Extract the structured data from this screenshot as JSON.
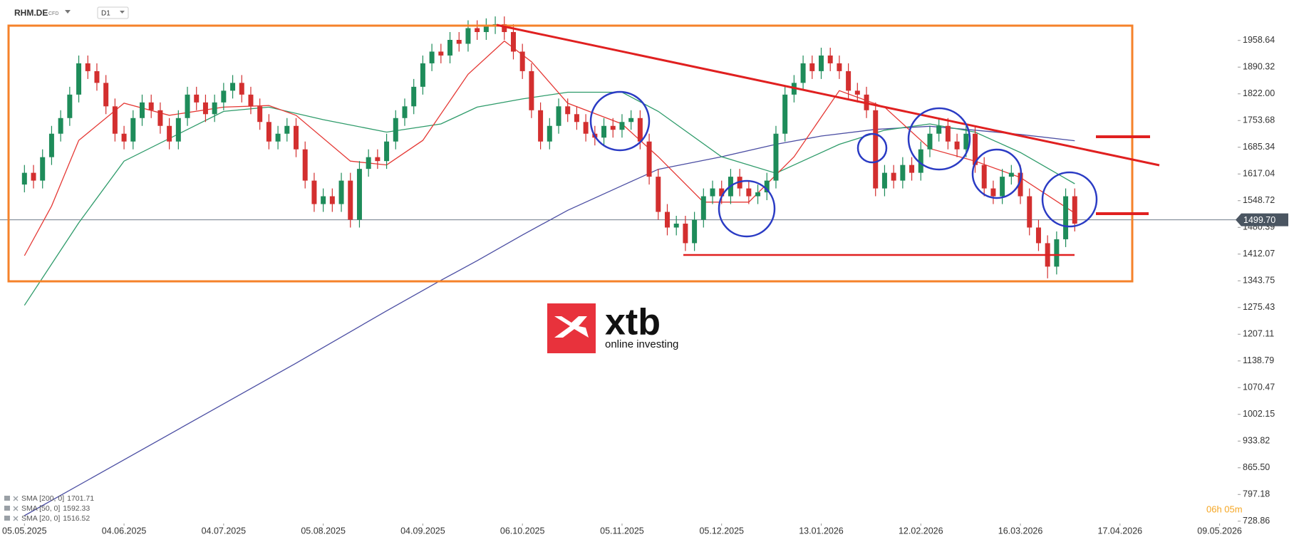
{
  "chart_data": {
    "type": "candlestick",
    "symbol": "RHM.DE",
    "instrument_type": "CFD",
    "timeframe": "D1",
    "up_color": "#1e8c5a",
    "down_color": "#d32f2f",
    "open": [
      1590,
      1620,
      1600,
      1660,
      1720,
      1760,
      1820,
      1900,
      1880,
      1850,
      1790,
      1720,
      1700,
      1760,
      1800,
      1780,
      1740,
      1700,
      1760,
      1820,
      1800,
      1770,
      1800,
      1830,
      1850,
      1820,
      1790,
      1750,
      1700,
      1720,
      1740,
      1680,
      1600,
      1540,
      1560,
      1540,
      1600,
      1500,
      1630,
      1660,
      1650,
      1700,
      1760,
      1790,
      1840,
      1900,
      1930,
      1920,
      1960,
      1950,
      1990,
      1980,
      1995,
      2000,
      1980,
      1930,
      1880,
      1780,
      1700,
      1740,
      1790,
      1770,
      1750,
      1720,
      1710,
      1740,
      1730,
      1750,
      1760,
      1700,
      1610,
      1520,
      1480,
      1490,
      1440,
      1500,
      1560,
      1580,
      1560,
      1610,
      1580,
      1560,
      1570,
      1600,
      1720,
      1820,
      1850,
      1900,
      1880,
      1920,
      1900,
      1880,
      1830,
      1820,
      1780,
      1580,
      1620,
      1600,
      1640,
      1620,
      1680,
      1720,
      1740,
      1700,
      1680,
      1720,
      1640,
      1580,
      1560,
      1610,
      1620,
      1560,
      1480,
      1440,
      1380,
      1450,
      1560
    ],
    "high": [
      1640,
      1640,
      1680,
      1740,
      1780,
      1840,
      1920,
      1920,
      1900,
      1870,
      1810,
      1740,
      1780,
      1820,
      1820,
      1800,
      1760,
      1780,
      1840,
      1840,
      1820,
      1820,
      1850,
      1870,
      1870,
      1840,
      1810,
      1770,
      1740,
      1760,
      1760,
      1700,
      1620,
      1580,
      1580,
      1620,
      1620,
      1650,
      1680,
      1680,
      1720,
      1780,
      1810,
      1860,
      1920,
      1950,
      1950,
      1980,
      1980,
      2010,
      2010,
      2015,
      2020,
      2020,
      2000,
      1950,
      1900,
      1800,
      1760,
      1810,
      1810,
      1790,
      1770,
      1740,
      1760,
      1760,
      1770,
      1780,
      1780,
      1720,
      1630,
      1540,
      1510,
      1510,
      1520,
      1580,
      1600,
      1600,
      1630,
      1630,
      1600,
      1590,
      1620,
      1740,
      1840,
      1870,
      1920,
      1920,
      1940,
      1940,
      1920,
      1900,
      1850,
      1840,
      1800,
      1640,
      1640,
      1660,
      1660,
      1700,
      1740,
      1760,
      1760,
      1720,
      1740,
      1740,
      1660,
      1600,
      1630,
      1640,
      1640,
      1580,
      1500,
      1460,
      1470,
      1580,
      1580
    ],
    "low": [
      1570,
      1580,
      1580,
      1640,
      1700,
      1740,
      1800,
      1860,
      1830,
      1770,
      1700,
      1680,
      1680,
      1740,
      1760,
      1720,
      1680,
      1680,
      1740,
      1780,
      1750,
      1750,
      1780,
      1810,
      1800,
      1770,
      1730,
      1680,
      1680,
      1700,
      1660,
      1580,
      1520,
      1520,
      1520,
      1520,
      1480,
      1480,
      1610,
      1630,
      1630,
      1680,
      1740,
      1770,
      1820,
      1880,
      1900,
      1900,
      1930,
      1930,
      1960,
      1960,
      1975,
      1960,
      1910,
      1860,
      1760,
      1680,
      1680,
      1720,
      1750,
      1730,
      1700,
      1690,
      1690,
      1710,
      1710,
      1730,
      1680,
      1590,
      1500,
      1460,
      1460,
      1420,
      1420,
      1480,
      1540,
      1540,
      1540,
      1560,
      1540,
      1540,
      1550,
      1580,
      1700,
      1800,
      1830,
      1860,
      1860,
      1880,
      1860,
      1810,
      1800,
      1760,
      1560,
      1560,
      1580,
      1580,
      1600,
      1600,
      1660,
      1700,
      1680,
      1660,
      1660,
      1620,
      1560,
      1540,
      1540,
      1590,
      1540,
      1460,
      1420,
      1350,
      1360,
      1430,
      1470
    ],
    "close": [
      1620,
      1600,
      1660,
      1720,
      1760,
      1820,
      1900,
      1880,
      1850,
      1790,
      1720,
      1700,
      1760,
      1800,
      1780,
      1740,
      1700,
      1760,
      1820,
      1800,
      1770,
      1800,
      1830,
      1850,
      1820,
      1790,
      1750,
      1700,
      1720,
      1740,
      1680,
      1600,
      1540,
      1560,
      1540,
      1600,
      1500,
      1630,
      1660,
      1650,
      1700,
      1760,
      1790,
      1840,
      1900,
      1930,
      1920,
      1960,
      1950,
      1990,
      1980,
      1995,
      2000,
      1980,
      1930,
      1880,
      1780,
      1700,
      1740,
      1790,
      1770,
      1750,
      1720,
      1710,
      1740,
      1730,
      1750,
      1760,
      1700,
      1610,
      1520,
      1480,
      1490,
      1440,
      1500,
      1560,
      1580,
      1560,
      1610,
      1580,
      1560,
      1570,
      1600,
      1720,
      1820,
      1850,
      1900,
      1880,
      1920,
      1900,
      1880,
      1830,
      1820,
      1780,
      1580,
      1620,
      1600,
      1640,
      1620,
      1680,
      1720,
      1740,
      1700,
      1680,
      1720,
      1640,
      1580,
      1560,
      1610,
      1620,
      1560,
      1480,
      1440,
      1380,
      1450,
      1560,
      1490
    ],
    "xlim": [
      -2.7,
      134
    ],
    "xticks": [
      {
        "value": 0,
        "label": "05.05.2025"
      },
      {
        "value": 11,
        "label": "04.06.2025"
      },
      {
        "value": 22,
        "label": "04.07.2025"
      },
      {
        "value": 33,
        "label": "05.08.2025"
      },
      {
        "value": 44,
        "label": "04.09.2025"
      },
      {
        "value": 55,
        "label": "06.10.2025"
      },
      {
        "value": 66,
        "label": "05.11.2025"
      },
      {
        "value": 77,
        "label": "05.12.2025"
      },
      {
        "value": 88,
        "label": "13.01.2026"
      },
      {
        "value": 99,
        "label": "12.02.2026"
      },
      {
        "value": 110,
        "label": "16.03.2026"
      },
      {
        "value": 121,
        "label": "17.04.2026"
      },
      {
        "value": 132,
        "label": "09.05.2026"
      }
    ],
    "ylim": [
      723,
      2062
    ],
    "yticks": [
      1958.64,
      1890.32,
      {
        "value": 1822,
        "label": "1822.00"
      },
      1753.68,
      1685.34,
      1617.04,
      1548.72,
      1480.39,
      1412.07,
      1343.75,
      1275.43,
      1207.11,
      1138.79,
      1070.47,
      1002.15,
      933.82,
      {
        "value": 865.5,
        "label": "865.50"
      },
      797.18,
      728.86
    ],
    "last_price": {
      "value": 1499.7,
      "label": "1499.70"
    },
    "series": [
      {
        "name": "SMA [200, 0]",
        "color": "#4b4ea3",
        "last": 1701.71,
        "x": [
          0,
          10,
          20,
          30,
          40,
          46,
          50,
          55,
          60,
          66,
          70,
          77,
          83,
          88,
          94,
          100,
          105,
          110,
          116
        ],
        "values": [
          743,
          873,
          1003,
          1133,
          1267,
          1345,
          1395,
          1461,
          1524,
          1587,
          1629,
          1661,
          1693,
          1714,
          1731,
          1739,
          1729,
          1718,
          1702
        ]
      },
      {
        "name": "SMA [50, 0]",
        "color": "#2e9b6a",
        "last": 1592.33,
        "x": [
          0,
          6,
          11,
          22,
          27,
          33,
          40,
          46,
          50,
          55,
          60,
          66,
          70,
          77,
          83,
          90,
          95,
          100,
          105,
          110,
          116
        ],
        "values": [
          1281,
          1492,
          1650,
          1777,
          1788,
          1756,
          1724,
          1745,
          1788,
          1809,
          1826,
          1826,
          1777,
          1661,
          1619,
          1693,
          1729,
          1745,
          1724,
          1672,
          1592
        ]
      },
      {
        "name": "SMA [20, 0]",
        "color": "#e53935",
        "last": 1516.52,
        "x": [
          0,
          3,
          6,
          11,
          16,
          22,
          27,
          30,
          36,
          40,
          44,
          49,
          53,
          56,
          60,
          66,
          70,
          75,
          80,
          85,
          90,
          95,
          100,
          105,
          110,
          116
        ],
        "values": [
          1408,
          1535,
          1703,
          1798,
          1767,
          1788,
          1792,
          1767,
          1650,
          1640,
          1703,
          1872,
          1957,
          1904,
          1798,
          1745,
          1661,
          1545,
          1545,
          1661,
          1830,
          1788,
          1682,
          1650,
          1608,
          1517
        ]
      }
    ],
    "countdown": "06h 05m",
    "logo": {
      "brand": "xtb",
      "tagline": "online investing"
    }
  }
}
